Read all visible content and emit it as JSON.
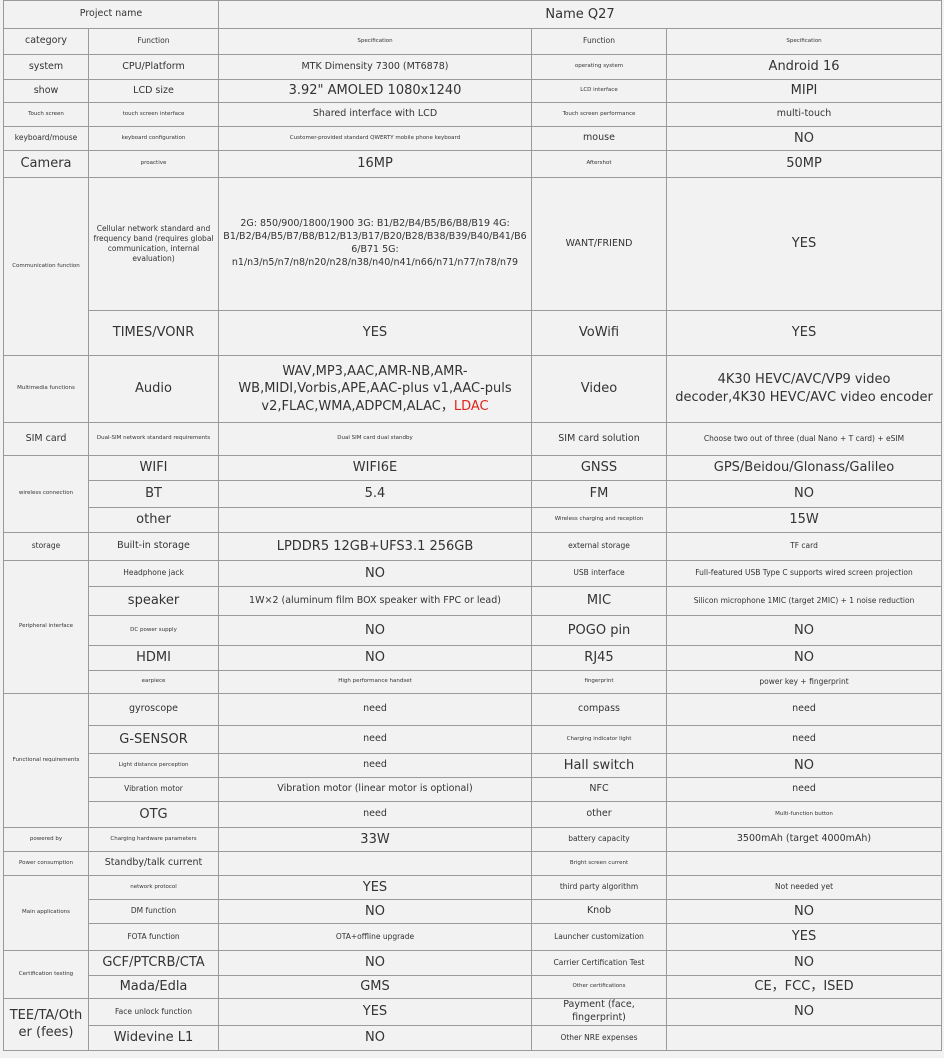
{
  "table": {
    "rows": [
      [
        "Project name",
        "Name Q27"
      ],
      [
        "category",
        "Function",
        "Specification",
        "Function",
        "Specification"
      ],
      [
        "system",
        "CPU/Platform",
        "MTK Dimensity 7300 (MT6878)",
        "operating system",
        "Android 16"
      ],
      [
        "show",
        "LCD size",
        "3.92\" AMOLED 1080x1240",
        "LCD interface",
        "MIPI"
      ],
      [
        "Touch screen",
        "touch screen interface",
        "Shared interface with LCD",
        "Touch screen performance",
        "multi-touch"
      ],
      [
        "keyboard/mouse",
        "keyboard configuration",
        "Customer-provided standard QWERTY mobile phone keyboard",
        "mouse",
        "NO"
      ],
      [
        "Camera",
        "proactive",
        "16MP",
        "Aftershot",
        "50MP"
      ],
      [
        "Communication function",
        "Cellular network standard and frequency band (requires global communication, internal evaluation)",
        "2G: 850/900/1800/1900 3G: B1/B2/B4/B5/B6/B8/B19 4G: B1/B2/B4/B5/B7/B8/B12/B13/B17/B20/B28/B38/B39/B40/B41/B66/B71 5G: n1/n3/n5/n7/n8/n20/n28/n38/n40/n41/n66/n71/n77/n78/n79",
        "WANT/FRIEND",
        "YES"
      ],
      [
        "TIMES/VONR",
        "YES",
        "VoWifi",
        "YES"
      ],
      [
        "Multimedia functions",
        "Audio",
        {
          "text": "WAV,MP3,AAC,AMR-NB,AMR-WB,MIDI,Vorbis,APE,AAC-plus v1,AAC-puls v2,FLAC,WMA,ADPCM,ALAC，",
          "highlight": "LDAC"
        },
        "Video",
        "4K30 HEVC/AVC/VP9 video decoder,4K30 HEVC/AVC video encoder"
      ],
      [
        "SIM card",
        "Dual-SIM network standard requirements",
        "Dual SIM card dual standby",
        "SIM card solution",
        "Choose two out of three (dual Nano + T card) + eSIM"
      ],
      [
        "wireless connection",
        "WIFI",
        "WIFI6E",
        "GNSS",
        "GPS/Beidou/Glonass/Galileo"
      ],
      [
        "BT",
        "5.4",
        "FM",
        "NO"
      ],
      [
        "other",
        null,
        "Wireless charging and reception",
        "15W"
      ],
      [
        "storage",
        "Built-in storage",
        "LPDDR5 12GB+UFS3.1 256GB",
        "external storage",
        "TF card"
      ],
      [
        "Peripheral interface",
        "Headphone jack",
        "NO",
        "USB interface",
        "Full-featured USB Type C supports wired screen projection"
      ],
      [
        "speaker",
        "1W×2 (aluminum film BOX speaker with FPC or lead)",
        "MIC",
        "Silicon microphone 1MIC (target 2MIC) + 1 noise reduction"
      ],
      [
        "DC power supply",
        "NO",
        "POGO pin",
        "NO"
      ],
      [
        "HDMI",
        "NO",
        "RJ45",
        "NO"
      ],
      [
        "earpiece",
        "High performance handset",
        "fingerprint",
        "power key + fingerprint"
      ],
      [
        "Functional requirements",
        "gyroscope",
        "need",
        "compass",
        "need"
      ],
      [
        "G-SENSOR",
        "need",
        "Charging indicator light",
        "need"
      ],
      [
        "Light distance perception",
        "need",
        "Hall switch",
        "NO"
      ],
      [
        "Vibration motor",
        "Vibration motor (linear motor is optional)",
        "NFC",
        "need"
      ],
      [
        "OTG",
        "need",
        "other",
        "Multi-function button"
      ],
      [
        "powered by",
        "Charging hardware parameters",
        "33W",
        "battery capacity",
        "3500mAh (target 4000mAh)"
      ],
      [
        "Power consumption",
        "Standby/talk current",
        null,
        "Bright screen current",
        null
      ],
      [
        "Main applications",
        "network protocol",
        "YES",
        "third party algorithm",
        "Not needed yet"
      ],
      [
        "DM function",
        "NO",
        "Knob",
        "NO"
      ],
      [
        "FOTA function",
        "OTA+offline upgrade",
        "Launcher customization",
        "YES"
      ],
      [
        "Certification testing",
        "GCF/PTCRB/CTA",
        "NO",
        "Carrier Certification Test",
        "NO"
      ],
      [
        "Mada/Edla",
        "GMS",
        "Other certifications",
        "CE，FCC，ISED"
      ],
      [
        "TEE/TA/Other (fees)",
        "Face unlock function",
        "YES",
        "Payment (face, fingerprint)",
        "NO"
      ],
      [
        "Widevine L1",
        "NO",
        "Other NRE expenses",
        null
      ]
    ]
  }
}
